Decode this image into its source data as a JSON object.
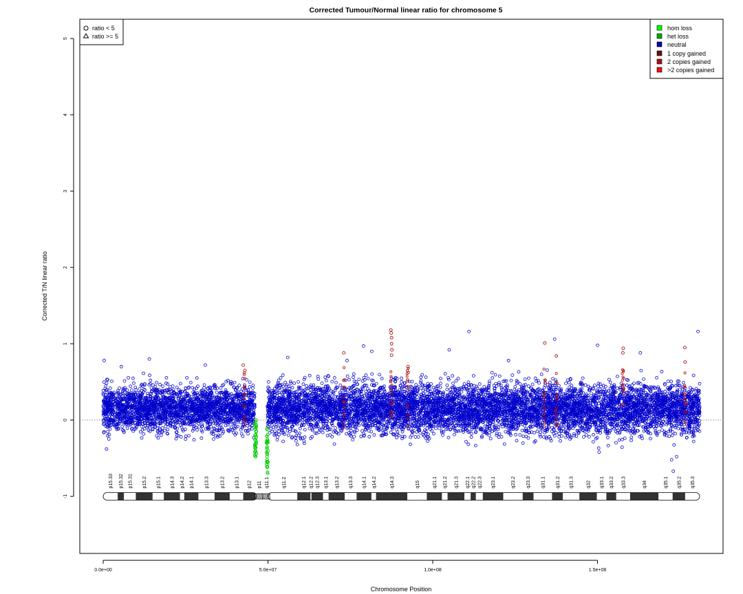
{
  "chart_data": {
    "type": "scatter",
    "title": "Corrected Tumour/Normal linear ratio for chromosome  5",
    "xlabel": "Chromosome Position",
    "ylabel": "Corrected T/N linear ratio",
    "xlim": [
      0,
      181000000
    ],
    "ylim": [
      -1.8,
      5.3
    ],
    "x_ticks": [
      0,
      50000000,
      100000000,
      150000000
    ],
    "x_tick_labels": [
      "0.0e+00",
      "5.0e+07",
      "1.0e+08",
      "1.5e+08"
    ],
    "y_ticks": [
      -1,
      0,
      1,
      2,
      3,
      4,
      5
    ],
    "y_tick_labels": [
      "-1",
      "0",
      "1",
      "2",
      "3",
      "4",
      "5"
    ],
    "reference_line_y": 0,
    "shape_legend": {
      "position": "top-left",
      "items": [
        {
          "shape": "circle",
          "label": "ratio < 5"
        },
        {
          "shape": "triangle",
          "label": "ratio >= 5"
        }
      ]
    },
    "legend": {
      "position": "top-right",
      "items": [
        {
          "label": "hom loss",
          "color": "#00ff00"
        },
        {
          "label": "het loss",
          "color": "#00aa00"
        },
        {
          "label": "neutral",
          "color": "#0000aa"
        },
        {
          "label": "1 copy gained",
          "color": "#661111"
        },
        {
          "label": "2 copies gained",
          "color": "#aa1111"
        },
        {
          "label": ">2 copies gained",
          "color": "#ee1111"
        }
      ]
    },
    "series": [
      {
        "name": "neutral",
        "color": "#0000cc",
        "description": "dense band of circles",
        "segments": [
          {
            "x_start": 0,
            "x_end": 46000000,
            "y_low": -0.25,
            "y_high": 0.55
          },
          {
            "x_start": 49800000,
            "x_end": 181000000,
            "y_low": -0.3,
            "y_high": 0.6
          }
        ],
        "outliers": [
          {
            "x": 300000,
            "y": 0.78
          },
          {
            "x": 5500000,
            "y": 0.7
          },
          {
            "x": 14000000,
            "y": 0.8
          },
          {
            "x": 31000000,
            "y": 0.72
          },
          {
            "x": 56000000,
            "y": 0.82
          },
          {
            "x": 74000000,
            "y": 0.78
          },
          {
            "x": 79000000,
            "y": 0.97
          },
          {
            "x": 81500000,
            "y": 0.9
          },
          {
            "x": 105000000,
            "y": 0.92
          },
          {
            "x": 111000000,
            "y": 1.16
          },
          {
            "x": 123000000,
            "y": 0.78
          },
          {
            "x": 137000000,
            "y": 1.06
          },
          {
            "x": 150000000,
            "y": 0.98
          },
          {
            "x": 163000000,
            "y": 0.88
          },
          {
            "x": 180500000,
            "y": 1.16
          },
          {
            "x": 172500000,
            "y": -0.52
          },
          {
            "x": 174000000,
            "y": -0.48
          },
          {
            "x": 173000000,
            "y": -0.67
          },
          {
            "x": 150500000,
            "y": -0.42
          },
          {
            "x": 1000000,
            "y": -0.38
          }
        ]
      },
      {
        "name": "het loss",
        "color": "#00cc00",
        "points": [
          {
            "x": 46000000,
            "y": -0.05
          },
          {
            "x": 46100000,
            "y": -0.2
          },
          {
            "x": 46200000,
            "y": -0.35
          },
          {
            "x": 46300000,
            "y": -0.48
          },
          {
            "x": 46400000,
            "y": 0.0
          },
          {
            "x": 46500000,
            "y": -0.15
          },
          {
            "x": 49600000,
            "y": -0.3
          },
          {
            "x": 49700000,
            "y": -0.48
          },
          {
            "x": 49800000,
            "y": -0.62
          },
          {
            "x": 49900000,
            "y": -0.7
          },
          {
            "x": 50000000,
            "y": -0.55
          }
        ]
      },
      {
        "name": "1 copy gained",
        "color": "#aa1111",
        "points": [
          {
            "x": 42500000,
            "y": 0.72
          },
          {
            "x": 43000000,
            "y": 0.65
          },
          {
            "x": 73000000,
            "y": 0.88
          },
          {
            "x": 87300000,
            "y": 1.18
          },
          {
            "x": 87400000,
            "y": 1.14
          },
          {
            "x": 87500000,
            "y": 1.08
          },
          {
            "x": 87500000,
            "y": 1.0
          },
          {
            "x": 87600000,
            "y": 0.92
          },
          {
            "x": 87500000,
            "y": 0.85
          },
          {
            "x": 92500000,
            "y": 0.7
          },
          {
            "x": 134000000,
            "y": 1.01
          },
          {
            "x": 137500000,
            "y": 0.84
          },
          {
            "x": 157800000,
            "y": 0.94
          },
          {
            "x": 157700000,
            "y": 0.88
          },
          {
            "x": 176500000,
            "y": 0.95
          },
          {
            "x": 176600000,
            "y": 0.76
          }
        ]
      }
    ],
    "ideogram": {
      "y": -1,
      "centromere": [
        46500000,
        50000000
      ],
      "bands": [
        {
          "name": "p15.33",
          "start": 0,
          "end": 4400000,
          "stain": "gneg"
        },
        {
          "name": "p15.32",
          "start": 4400000,
          "end": 6300000,
          "stain": "gpos"
        },
        {
          "name": "p15.31",
          "start": 6300000,
          "end": 9900000,
          "stain": "gneg"
        },
        {
          "name": "p15.2",
          "start": 9900000,
          "end": 15000000,
          "stain": "gpos"
        },
        {
          "name": "p15.1",
          "start": 15000000,
          "end": 18400000,
          "stain": "gneg"
        },
        {
          "name": "p14.3",
          "start": 18400000,
          "end": 23300000,
          "stain": "gpos"
        },
        {
          "name": "p14.2",
          "start": 23300000,
          "end": 24600000,
          "stain": "gneg"
        },
        {
          "name": "p14.1",
          "start": 24600000,
          "end": 28900000,
          "stain": "gpos"
        },
        {
          "name": "p13.3",
          "start": 28900000,
          "end": 33800000,
          "stain": "gneg"
        },
        {
          "name": "p13.2",
          "start": 33800000,
          "end": 38400000,
          "stain": "gpos"
        },
        {
          "name": "p13.1",
          "start": 38400000,
          "end": 42500000,
          "stain": "gneg"
        },
        {
          "name": "p12",
          "start": 42500000,
          "end": 46100000,
          "stain": "gpos"
        },
        {
          "name": "p11",
          "start": 46100000,
          "end": 48400000,
          "stain": "acen"
        },
        {
          "name": "q11.1",
          "start": 48400000,
          "end": 50700000,
          "stain": "acen"
        },
        {
          "name": "q11.2",
          "start": 50700000,
          "end": 58900000,
          "stain": "gneg"
        },
        {
          "name": "q12.1",
          "start": 58900000,
          "end": 62900000,
          "stain": "gpos"
        },
        {
          "name": "q12.2",
          "start": 62900000,
          "end": 63200000,
          "stain": "gneg"
        },
        {
          "name": "q12.3",
          "start": 63200000,
          "end": 66700000,
          "stain": "gpos"
        },
        {
          "name": "q13.1",
          "start": 66700000,
          "end": 68400000,
          "stain": "gneg"
        },
        {
          "name": "q13.2",
          "start": 68400000,
          "end": 73300000,
          "stain": "gpos"
        },
        {
          "name": "q13.3",
          "start": 73300000,
          "end": 76900000,
          "stain": "gneg"
        },
        {
          "name": "q14.1",
          "start": 76900000,
          "end": 81400000,
          "stain": "gpos"
        },
        {
          "name": "q14.2",
          "start": 81400000,
          "end": 82800000,
          "stain": "gneg"
        },
        {
          "name": "q14.3",
          "start": 82800000,
          "end": 92300000,
          "stain": "gpos"
        },
        {
          "name": "q15",
          "start": 92300000,
          "end": 98200000,
          "stain": "gneg"
        },
        {
          "name": "q21.1",
          "start": 98200000,
          "end": 102800000,
          "stain": "gpos"
        },
        {
          "name": "q21.2",
          "start": 102800000,
          "end": 104500000,
          "stain": "gneg"
        },
        {
          "name": "q21.3",
          "start": 104500000,
          "end": 109600000,
          "stain": "gpos"
        },
        {
          "name": "q22.1",
          "start": 109600000,
          "end": 111500000,
          "stain": "gneg"
        },
        {
          "name": "q22.2",
          "start": 111500000,
          "end": 113100000,
          "stain": "gpos"
        },
        {
          "name": "q22.3",
          "start": 113100000,
          "end": 115200000,
          "stain": "gneg"
        },
        {
          "name": "q23.1",
          "start": 115200000,
          "end": 121400000,
          "stain": "gpos"
        },
        {
          "name": "q23.2",
          "start": 121400000,
          "end": 127300000,
          "stain": "gneg"
        },
        {
          "name": "q23.3",
          "start": 127300000,
          "end": 130600000,
          "stain": "gpos"
        },
        {
          "name": "q31.1",
          "start": 130600000,
          "end": 136200000,
          "stain": "gneg"
        },
        {
          "name": "q31.2",
          "start": 136200000,
          "end": 139500000,
          "stain": "gpos"
        },
        {
          "name": "q31.3",
          "start": 139500000,
          "end": 144500000,
          "stain": "gneg"
        },
        {
          "name": "q32",
          "start": 144500000,
          "end": 149800000,
          "stain": "gpos"
        },
        {
          "name": "q33.1",
          "start": 149800000,
          "end": 152700000,
          "stain": "gneg"
        },
        {
          "name": "q33.2",
          "start": 152700000,
          "end": 155700000,
          "stain": "gpos"
        },
        {
          "name": "q33.3",
          "start": 155700000,
          "end": 159900000,
          "stain": "gneg"
        },
        {
          "name": "q34",
          "start": 159900000,
          "end": 168500000,
          "stain": "gpos"
        },
        {
          "name": "q35.1",
          "start": 168500000,
          "end": 172800000,
          "stain": "gneg"
        },
        {
          "name": "q35.2",
          "start": 172800000,
          "end": 176600000,
          "stain": "gpos"
        },
        {
          "name": "q35.3",
          "start": 176600000,
          "end": 181000000,
          "stain": "gneg"
        }
      ]
    }
  }
}
